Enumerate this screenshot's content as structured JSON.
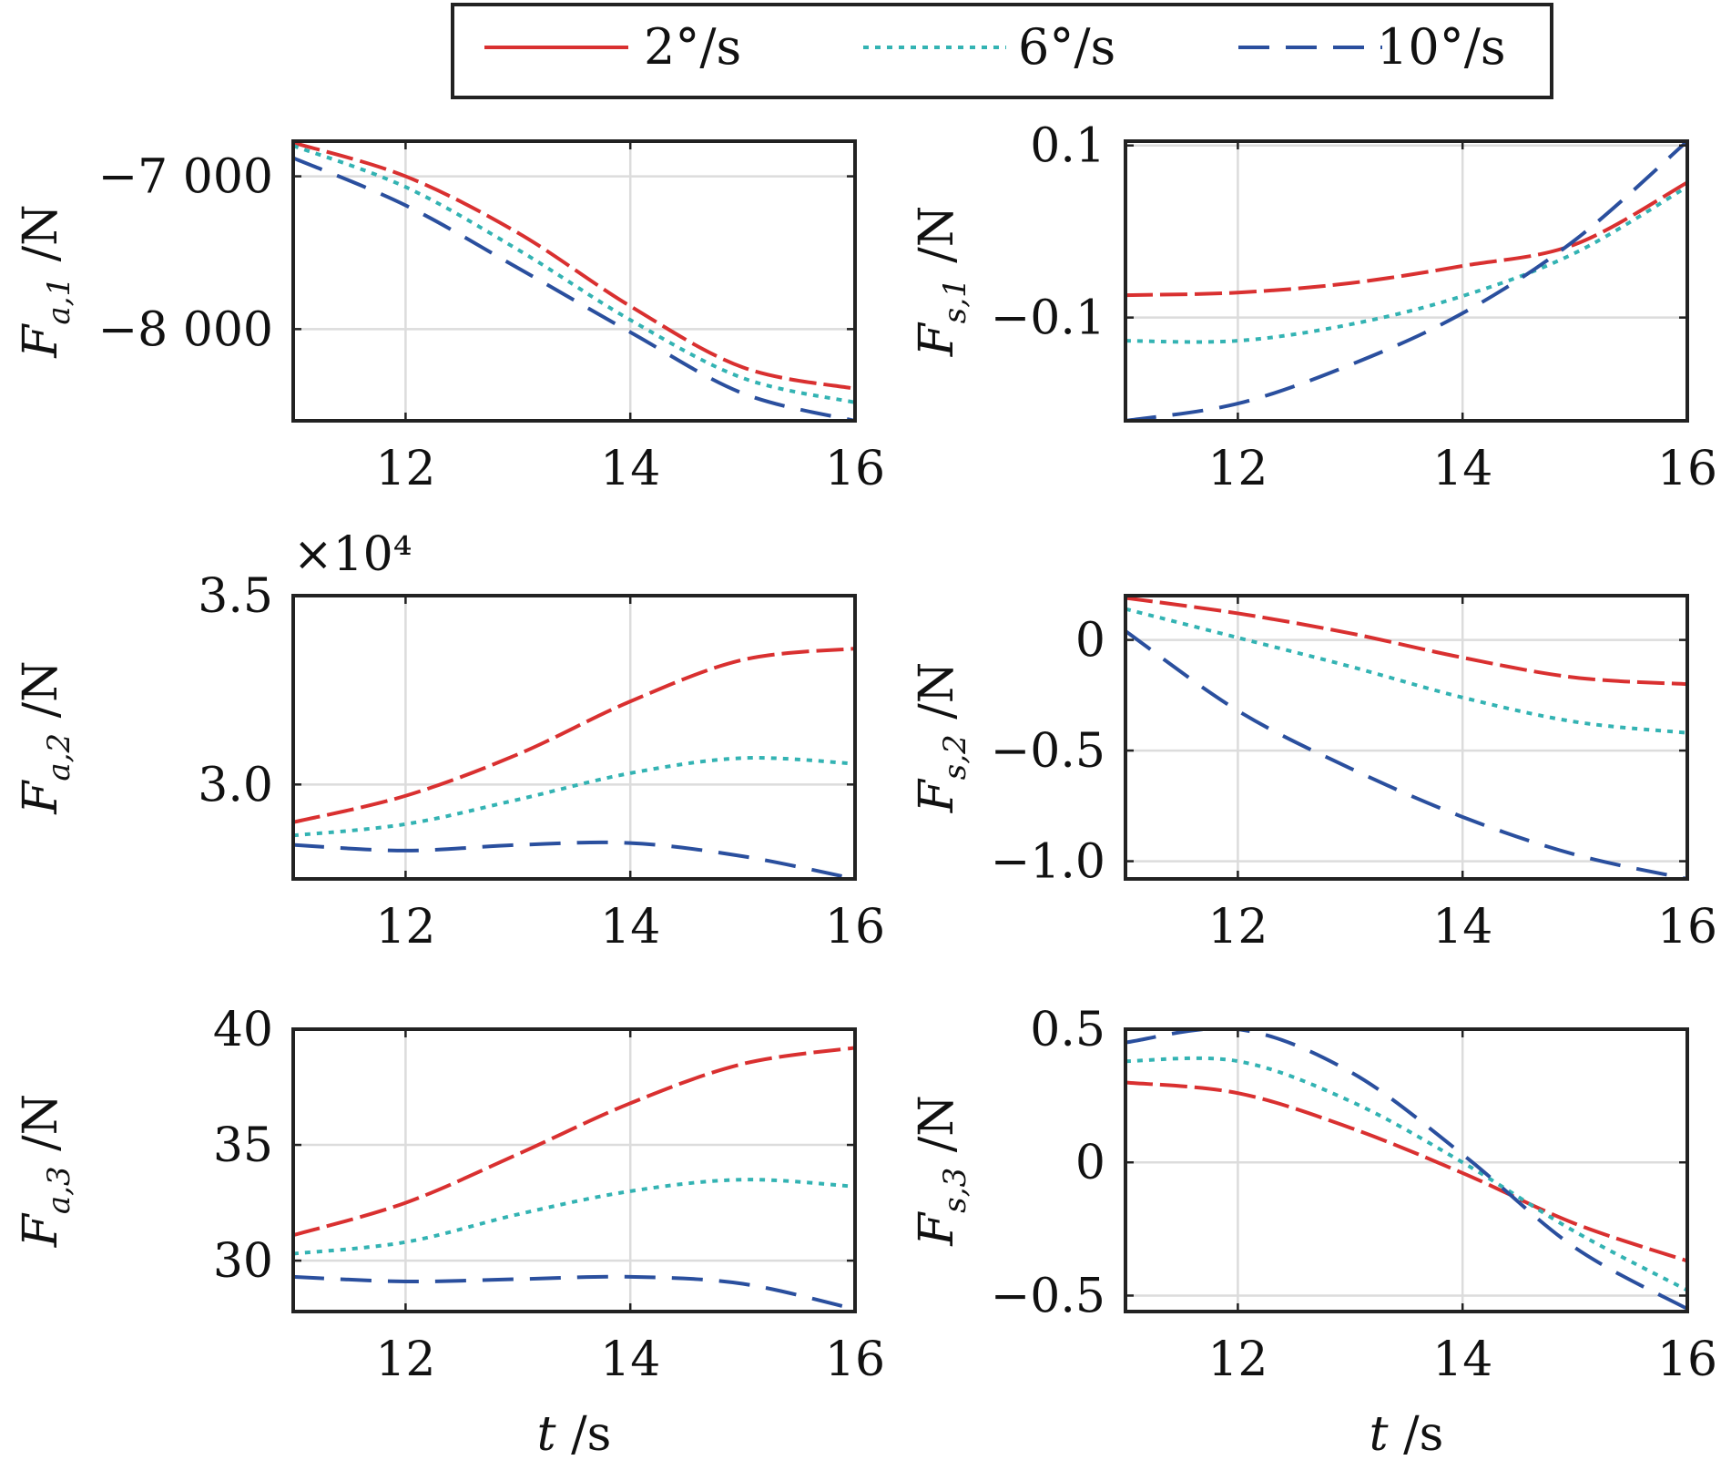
{
  "chart_data": [
    {
      "type": "line",
      "panel": "a1",
      "ylabel": {
        "sym": "F",
        "sub": "a,1",
        "unit": " /N"
      },
      "xlabel": {
        "sym": "",
        "unit": ""
      },
      "xlim": [
        11,
        16
      ],
      "ylim": [
        -8600,
        -6770
      ],
      "xticks": [
        12,
        14,
        16
      ],
      "yticks": [
        -8000,
        -7000
      ],
      "xtick_labels": [
        "12",
        "14",
        "16"
      ],
      "ytick_labels": [
        "−8 000",
        "−7 000"
      ],
      "multiplier": "",
      "grid": true,
      "series": [
        {
          "name": "2°/s",
          "values": [
            [
              11,
              -6780
            ],
            [
              12,
              -7000
            ],
            [
              13,
              -7370
            ],
            [
              14,
              -7850
            ],
            [
              15,
              -8250
            ],
            [
              16,
              -8390
            ]
          ]
        },
        {
          "name": "6°/s",
          "values": [
            [
              11,
              -6800
            ],
            [
              12,
              -7070
            ],
            [
              13,
              -7480
            ],
            [
              14,
              -7940
            ],
            [
              15,
              -8320
            ],
            [
              16,
              -8480
            ]
          ]
        },
        {
          "name": "10°/s",
          "values": [
            [
              11,
              -6880
            ],
            [
              12,
              -7190
            ],
            [
              13,
              -7600
            ],
            [
              14,
              -8020
            ],
            [
              15,
              -8420
            ],
            [
              16,
              -8600
            ]
          ]
        }
      ]
    },
    {
      "type": "line",
      "panel": "s1",
      "ylabel": {
        "sym": "F",
        "sub": "s,1",
        "unit": " /N"
      },
      "xlabel": {
        "sym": "",
        "unit": ""
      },
      "xlim": [
        11,
        16
      ],
      "ylim": [
        -0.22,
        0.105
      ],
      "xticks": [
        12,
        14,
        16
      ],
      "yticks": [
        -0.1,
        0.1
      ],
      "xtick_labels": [
        "12",
        "14",
        "16"
      ],
      "ytick_labels": [
        "−0.1",
        "0.1"
      ],
      "multiplier": "",
      "grid": true,
      "series": [
        {
          "name": "2°/s",
          "values": [
            [
              11,
              -0.074
            ],
            [
              12,
              -0.071
            ],
            [
              13,
              -0.06
            ],
            [
              14,
              -0.04
            ],
            [
              15,
              -0.015
            ],
            [
              16,
              0.057
            ]
          ]
        },
        {
          "name": "6°/s",
          "values": [
            [
              11,
              -0.127
            ],
            [
              12,
              -0.127
            ],
            [
              13,
              -0.108
            ],
            [
              14,
              -0.075
            ],
            [
              15,
              -0.025
            ],
            [
              16,
              0.052
            ]
          ]
        },
        {
          "name": "10°/s",
          "values": [
            [
              11,
              -0.22
            ],
            [
              12,
              -0.2
            ],
            [
              13,
              -0.155
            ],
            [
              14,
              -0.095
            ],
            [
              15,
              -0.01
            ],
            [
              16,
              0.105
            ]
          ]
        }
      ]
    },
    {
      "type": "line",
      "panel": "a2",
      "ylabel": {
        "sym": "F",
        "sub": "a,2",
        "unit": " /N"
      },
      "xlabel": {
        "sym": "",
        "unit": ""
      },
      "xlim": [
        11,
        16
      ],
      "ylim": [
        2.75,
        3.5
      ],
      "xticks": [
        12,
        14,
        16
      ],
      "yticks": [
        3.0,
        3.5
      ],
      "xtick_labels": [
        "12",
        "14",
        "16"
      ],
      "ytick_labels": [
        "3.0",
        "3.5"
      ],
      "multiplier": "×10⁴",
      "grid": true,
      "series": [
        {
          "name": "2°/s",
          "values": [
            [
              11,
              2.9
            ],
            [
              12,
              2.97
            ],
            [
              13,
              3.08
            ],
            [
              14,
              3.22
            ],
            [
              15,
              3.33
            ],
            [
              16,
              3.36
            ]
          ]
        },
        {
          "name": "6°/s",
          "values": [
            [
              11,
              2.865
            ],
            [
              12,
              2.895
            ],
            [
              13,
              2.96
            ],
            [
              14,
              3.03
            ],
            [
              15,
              3.07
            ],
            [
              16,
              3.055
            ]
          ]
        },
        {
          "name": "10°/s",
          "values": [
            [
              11,
              2.84
            ],
            [
              12,
              2.825
            ],
            [
              13,
              2.84
            ],
            [
              14,
              2.845
            ],
            [
              15,
              2.81
            ],
            [
              16,
              2.75
            ]
          ]
        }
      ]
    },
    {
      "type": "line",
      "panel": "s2",
      "ylabel": {
        "sym": "F",
        "sub": "s,2",
        "unit": " /N"
      },
      "xlabel": {
        "sym": "",
        "unit": ""
      },
      "xlim": [
        11,
        16
      ],
      "ylim": [
        -1.08,
        0.2
      ],
      "xticks": [
        12,
        14,
        16
      ],
      "yticks": [
        -1.0,
        -0.5,
        0
      ],
      "xtick_labels": [
        "12",
        "14",
        "16"
      ],
      "ytick_labels": [
        "−1.0",
        "−0.5",
        "0"
      ],
      "multiplier": "",
      "grid": true,
      "series": [
        {
          "name": "2°/s",
          "values": [
            [
              11,
              0.19
            ],
            [
              12,
              0.12
            ],
            [
              13,
              0.03
            ],
            [
              14,
              -0.08
            ],
            [
              15,
              -0.17
            ],
            [
              16,
              -0.2
            ]
          ]
        },
        {
          "name": "6°/s",
          "values": [
            [
              11,
              0.14
            ],
            [
              12,
              0.01
            ],
            [
              13,
              -0.12
            ],
            [
              14,
              -0.26
            ],
            [
              15,
              -0.37
            ],
            [
              16,
              -0.42
            ]
          ]
        },
        {
          "name": "10°/s",
          "values": [
            [
              11,
              0.04
            ],
            [
              12,
              -0.32
            ],
            [
              13,
              -0.58
            ],
            [
              14,
              -0.8
            ],
            [
              15,
              -0.97
            ],
            [
              16,
              -1.08
            ]
          ]
        }
      ]
    },
    {
      "type": "line",
      "panel": "a3",
      "ylabel": {
        "sym": "F",
        "sub": "a,3",
        "unit": " /N"
      },
      "xlabel": {
        "sym": "t",
        "unit": " /s"
      },
      "xlim": [
        11,
        16
      ],
      "ylim": [
        27.8,
        40
      ],
      "xticks": [
        12,
        14,
        16
      ],
      "yticks": [
        30,
        35,
        40
      ],
      "xtick_labels": [
        "12",
        "14",
        "16"
      ],
      "ytick_labels": [
        "30",
        "35",
        "40"
      ],
      "multiplier": "",
      "grid": true,
      "series": [
        {
          "name": "2°/s",
          "values": [
            [
              11,
              31.1
            ],
            [
              12,
              32.5
            ],
            [
              13,
              34.6
            ],
            [
              14,
              36.8
            ],
            [
              15,
              38.5
            ],
            [
              16,
              39.2
            ]
          ]
        },
        {
          "name": "6°/s",
          "values": [
            [
              11,
              30.3
            ],
            [
              12,
              30.8
            ],
            [
              13,
              32.0
            ],
            [
              14,
              33.0
            ],
            [
              15,
              33.5
            ],
            [
              16,
              33.2
            ]
          ]
        },
        {
          "name": "10°/s",
          "values": [
            [
              11,
              29.3
            ],
            [
              12,
              29.1
            ],
            [
              13,
              29.2
            ],
            [
              14,
              29.3
            ],
            [
              15,
              29.0
            ],
            [
              16,
              27.9
            ]
          ]
        }
      ]
    },
    {
      "type": "line",
      "panel": "s3",
      "ylabel": {
        "sym": "F",
        "sub": "s,3",
        "unit": " /N"
      },
      "xlabel": {
        "sym": "t",
        "unit": " /s"
      },
      "xlim": [
        11,
        16
      ],
      "ylim": [
        -0.56,
        0.5
      ],
      "xticks": [
        12,
        14,
        16
      ],
      "yticks": [
        -0.5,
        0,
        0.5
      ],
      "xtick_labels": [
        "12",
        "14",
        "16"
      ],
      "ytick_labels": [
        "−0.5",
        "0",
        "0.5"
      ],
      "multiplier": "",
      "grid": true,
      "series": [
        {
          "name": "2°/s",
          "values": [
            [
              11,
              0.3
            ],
            [
              12,
              0.26
            ],
            [
              13,
              0.13
            ],
            [
              14,
              -0.04
            ],
            [
              15,
              -0.23
            ],
            [
              16,
              -0.37
            ]
          ]
        },
        {
          "name": "6°/s",
          "values": [
            [
              11,
              0.38
            ],
            [
              12,
              0.38
            ],
            [
              13,
              0.23
            ],
            [
              14,
              0.0
            ],
            [
              15,
              -0.26
            ],
            [
              16,
              -0.48
            ]
          ]
        },
        {
          "name": "10°/s",
          "values": [
            [
              11,
              0.45
            ],
            [
              12,
              0.5
            ],
            [
              13,
              0.34
            ],
            [
              14,
              0.03
            ],
            [
              15,
              -0.32
            ],
            [
              16,
              -0.55
            ]
          ]
        }
      ]
    }
  ],
  "legend": {
    "position": "top-center",
    "entries": [
      {
        "name": "2°/s",
        "color": "#d93030",
        "style": "long-dash"
      },
      {
        "name": "6°/s",
        "color": "#33b3b3",
        "style": "dotted"
      },
      {
        "name": "10°/s",
        "color": "#2a4f9e",
        "style": "dash"
      }
    ]
  },
  "colors": {
    "axis": "#222222",
    "grid": "#dcdcdc"
  }
}
